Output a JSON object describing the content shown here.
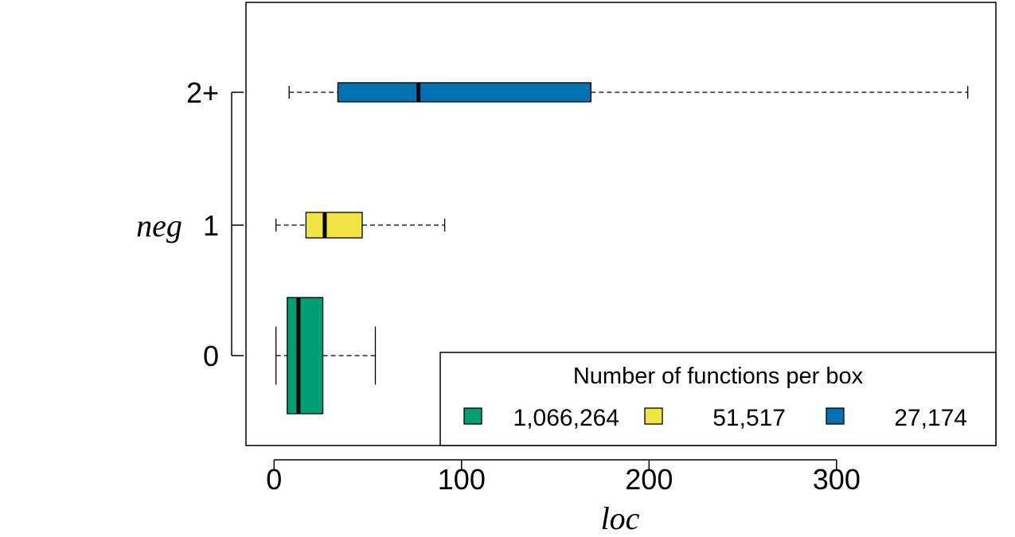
{
  "chart_data": {
    "type": "boxplot",
    "orientation": "horizontal",
    "xlabel": "loc",
    "ylabel": "neg",
    "xlim": [
      -15,
      385
    ],
    "xticks": [
      0,
      100,
      200,
      300
    ],
    "xtick_labels": [
      "0",
      "100",
      "200",
      "300"
    ],
    "categories": [
      "0",
      "1",
      "2+"
    ],
    "series": [
      {
        "category": "0",
        "whisker_low": 1,
        "q1": 7,
        "median": 13,
        "q3": 26,
        "whisker_high": 54,
        "color": "#009E73"
      },
      {
        "category": "1",
        "whisker_low": 1,
        "q1": 17,
        "median": 27,
        "q3": 47,
        "whisker_high": 91,
        "color": "#F0E442"
      },
      {
        "category": "2+",
        "whisker_low": 8,
        "q1": 34,
        "median": 77,
        "q3": 169,
        "whisker_high": 370,
        "color": "#0072B2"
      }
    ],
    "grid": false,
    "legend": {
      "title": "Number of functions per box",
      "placement": "bottom-right",
      "entries": [
        {
          "label": "1,066,264",
          "color": "#009E73"
        },
        {
          "label": "51,517",
          "color": "#F0E442"
        },
        {
          "label": "27,174",
          "color": "#0072B2"
        }
      ]
    }
  }
}
